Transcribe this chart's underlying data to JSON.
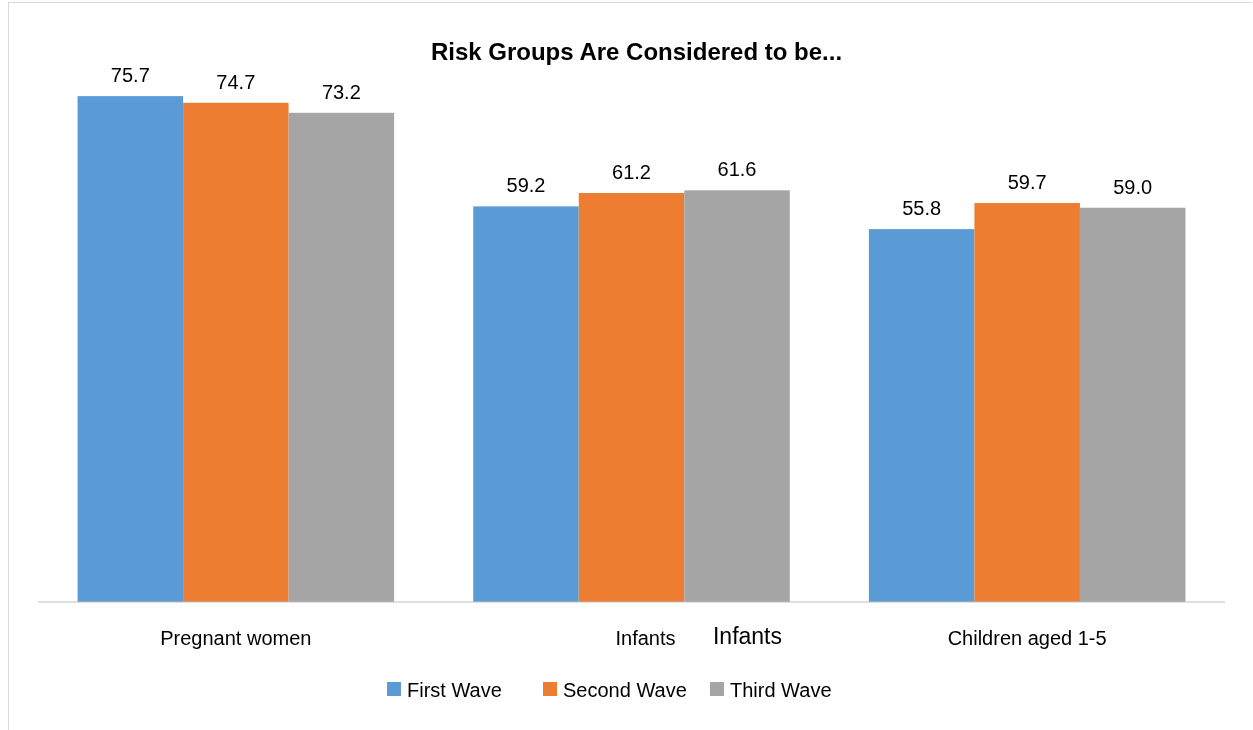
{
  "chart_data": {
    "type": "bar",
    "title": "Risk Groups Are Considered to be...",
    "categories": [
      "Pregnant women",
      "Infants",
      "Children aged 1-5"
    ],
    "series": [
      {
        "name": "First Wave",
        "color": "#5b9bd5",
        "values": [
          75.7,
          59.2,
          55.8
        ],
        "value_labels": [
          "75.7",
          "59.2",
          "55.8"
        ]
      },
      {
        "name": "Second Wave",
        "color": "#ed7d31",
        "values": [
          74.7,
          61.2,
          59.7
        ],
        "value_labels": [
          "74.7",
          "61.2",
          "59.7"
        ]
      },
      {
        "name": "Third Wave",
        "color": "#a5a5a5",
        "values": [
          73.2,
          61.6,
          59.0
        ],
        "value_labels": [
          "73.2",
          "61.6",
          "59.0"
        ]
      }
    ],
    "legend": "bottom",
    "annotations": [
      "Infants"
    ]
  }
}
